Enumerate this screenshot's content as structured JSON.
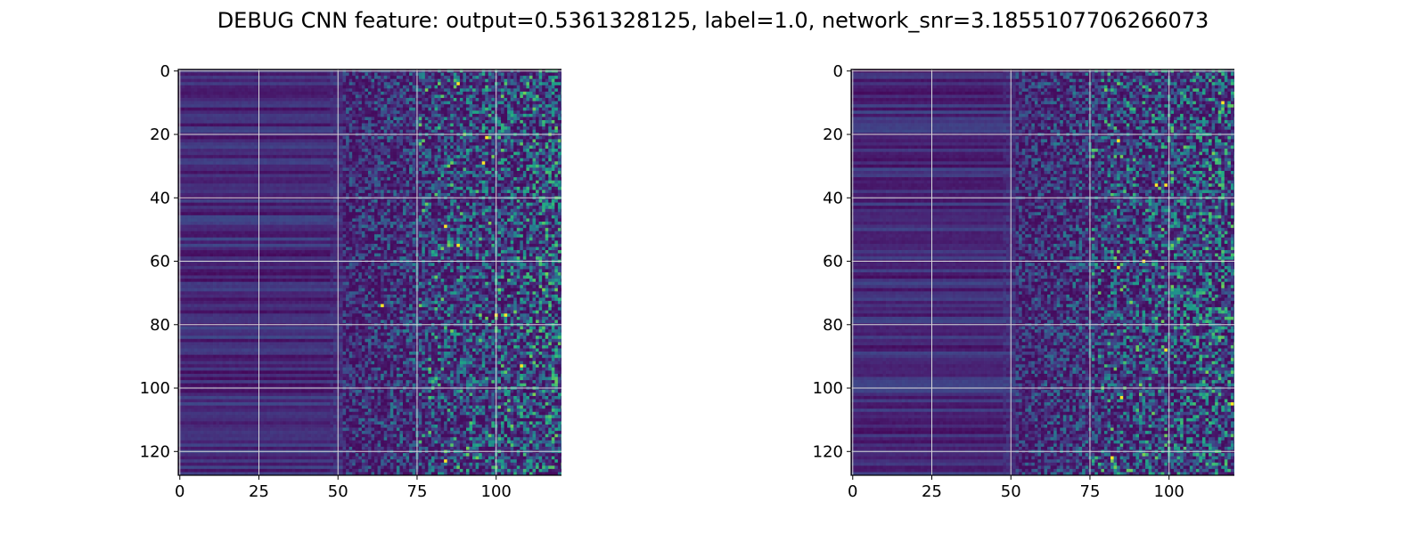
{
  "figure": {
    "title": "DEBUG CNN feature: output=0.5361328125, label=1.0, network_snr=3.1855107706266073"
  },
  "chart_data": [
    {
      "type": "heatmap",
      "title": "",
      "xlabel": "",
      "ylabel": "",
      "rows": 128,
      "cols": 122,
      "xlim": [
        -0.5,
        121.5
      ],
      "ylim": [
        127.5,
        -0.5
      ],
      "y_inverted": true,
      "xticks": [
        0,
        25,
        50,
        75,
        100
      ],
      "yticks": [
        0,
        20,
        40,
        60,
        80,
        100,
        120
      ],
      "grid": true,
      "colormap": "viridis",
      "noise_onset_col": 50,
      "bright_onset_col": 75,
      "hotspots": [
        [
          77,
          100
        ],
        [
          77,
          103
        ],
        [
          74,
          64
        ],
        [
          93,
          108
        ],
        [
          55,
          88
        ],
        [
          4,
          88
        ],
        [
          29,
          96
        ],
        [
          123,
          84
        ],
        [
          49,
          84
        ],
        [
          21,
          97
        ]
      ]
    },
    {
      "type": "heatmap",
      "title": "",
      "xlabel": "",
      "ylabel": "",
      "rows": 128,
      "cols": 122,
      "xlim": [
        -0.5,
        121.5
      ],
      "ylim": [
        127.5,
        -0.5
      ],
      "y_inverted": true,
      "xticks": [
        0,
        25,
        50,
        75,
        100
      ],
      "yticks": [
        0,
        20,
        40,
        60,
        80,
        100,
        120
      ],
      "grid": true,
      "colormap": "viridis",
      "noise_onset_col": 50,
      "bright_onset_col": 75,
      "hotspots": [
        [
          36,
          96
        ],
        [
          36,
          99
        ],
        [
          22,
          84
        ],
        [
          62,
          84
        ],
        [
          88,
          99
        ],
        [
          103,
          85
        ],
        [
          122,
          82
        ],
        [
          105,
          120
        ],
        [
          60,
          92
        ],
        [
          10,
          117
        ]
      ]
    }
  ]
}
